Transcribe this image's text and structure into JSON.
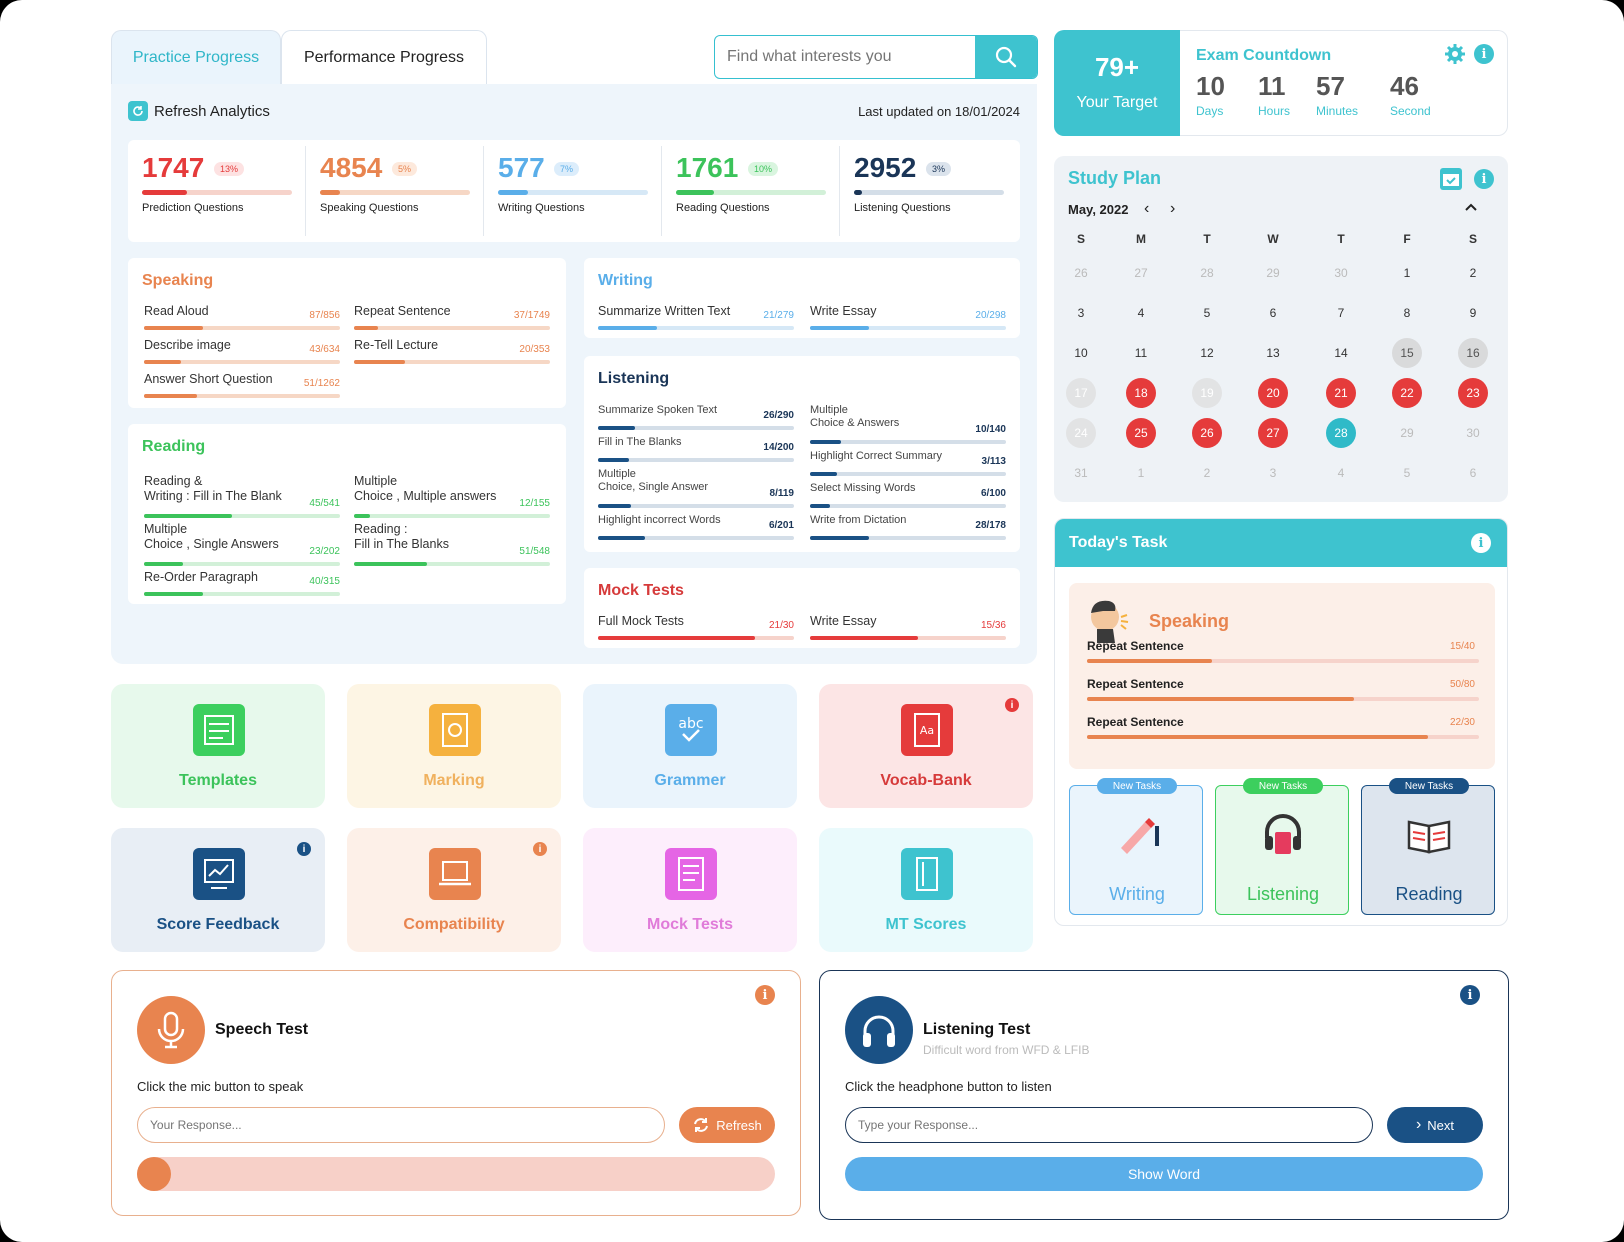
{
  "tabs": {
    "practice": "Practice Progress",
    "performance": "Performance Progress"
  },
  "search": {
    "placeholder": "Find what interests you"
  },
  "analytics": {
    "refresh": "Refresh Analytics",
    "last_updated": "Last updated on 18/01/2024"
  },
  "stats": [
    {
      "value": "1747",
      "pct": "13%",
      "label": "Prediction Questions",
      "fill": 0.3,
      "color": "#e53b3b",
      "track": "#f6d3cb",
      "pctbg": "#fde2e2"
    },
    {
      "value": "4854",
      "pct": "5%",
      "label": "Speaking Questions",
      "fill": 0.13,
      "color": "#e8844f",
      "track": "#f6d7c5",
      "pctbg": "#fde9dc"
    },
    {
      "value": "577",
      "pct": "7%",
      "label": "Writing Questions",
      "fill": 0.2,
      "color": "#5aaee9",
      "track": "#d6e8f6",
      "pctbg": "#dcedfb"
    },
    {
      "value": "1761",
      "pct": "10%",
      "label": "Reading Questions",
      "fill": 0.25,
      "color": "#3cc35b",
      "track": "#d2f0d8",
      "pctbg": "#d9f5df"
    },
    {
      "value": "2952",
      "pct": "3%",
      "label": "Listening Questions",
      "fill": 0.05,
      "color": "#1a3557",
      "track": "#d4dee8",
      "pctbg": "#dbe3ec"
    }
  ],
  "speaking": {
    "title": "Speaking",
    "items": [
      {
        "name": "Read Aloud",
        "val": "87/856",
        "fill": 0.3
      },
      {
        "name": "Repeat Sentence",
        "val": "37/1749",
        "fill": 0.12
      },
      {
        "name": "Describe image",
        "val": "43/634",
        "fill": 0.19
      },
      {
        "name": "Re-Tell Lecture",
        "val": "20/353",
        "fill": 0.26
      },
      {
        "name": "Answer Short Question",
        "val": "51/1262",
        "fill": 0.27
      }
    ]
  },
  "reading": {
    "title": "Reading",
    "items": [
      {
        "name1": "Reading &",
        "name2": "Writing : Fill in The Blank",
        "val": "45/541",
        "fill": 0.45
      },
      {
        "name1": "Multiple",
        "name2": "Choice , Multiple answers",
        "val": "12/155",
        "fill": 0.08
      },
      {
        "name1": "Multiple",
        "name2": "Choice , Single Answers",
        "val": "23/202",
        "fill": 0.2
      },
      {
        "name1": "Reading :",
        "name2": "Fill in The Blanks",
        "val": "51/548",
        "fill": 0.37
      },
      {
        "name1": "",
        "name2": "Re-Order Paragraph",
        "val": "40/315",
        "fill": 0.3
      }
    ]
  },
  "writing": {
    "title": "Writing",
    "items": [
      {
        "name": "Summarize Written Text",
        "val": "21/279",
        "fill": 0.3
      },
      {
        "name": "Write Essay",
        "val": "20/298",
        "fill": 0.3
      }
    ]
  },
  "listening": {
    "title": "Listening",
    "items": [
      {
        "name1": "",
        "name2": "Summarize Spoken Text",
        "val": "26/290",
        "fill": 0.19
      },
      {
        "name1": "Multiple",
        "name2": "Choice & Answers",
        "val": "10/140",
        "fill": 0.16
      },
      {
        "name1": "",
        "name2": "Fill in The Blanks",
        "val": "14/200",
        "fill": 0.16
      },
      {
        "name1": "",
        "name2": "Highlight Correct Summary",
        "val": "3/113",
        "fill": 0.14
      },
      {
        "name1": "Multiple",
        "name2": "Choice, Single Answer",
        "val": "8/119",
        "fill": 0.17
      },
      {
        "name1": "",
        "name2": "Select Missing Words",
        "val": "6/100",
        "fill": 0.1
      },
      {
        "name1": "",
        "name2": "Highlight incorrect Words",
        "val": "6/201",
        "fill": 0.24
      },
      {
        "name1": "",
        "name2": "Write from Dictation",
        "val": "28/178",
        "fill": 0.3
      }
    ]
  },
  "mock": {
    "title": "Mock Tests",
    "items": [
      {
        "name": "Full Mock Tests",
        "val": "21/30",
        "fill": 0.8
      },
      {
        "name": "Write Essay",
        "val": "15/36",
        "fill": 0.55
      }
    ]
  },
  "tiles": [
    {
      "label": "Templates",
      "icon": "templates-icon",
      "bg": "#e7f9ec",
      "ic": "#3ccf5e",
      "tc": "#3cc35b"
    },
    {
      "label": "Marking",
      "icon": "marking-icon",
      "bg": "#fdf5e4",
      "ic": "#f5b13e",
      "tc": "#f0b15e"
    },
    {
      "label": "Grammer",
      "icon": "grammar-icon",
      "bg": "#eaf4fc",
      "ic": "#5aaee9",
      "tc": "#5aaee9"
    },
    {
      "label": "Vocab-Bank",
      "icon": "vocab-icon",
      "bg": "#fce5e5",
      "ic": "#e53b3b",
      "tc": "#d63a3a",
      "info": "#e53b3b"
    },
    {
      "label": "Score Feedback",
      "icon": "score-feedback-icon",
      "bg": "#e8eef5",
      "ic": "#1a5185",
      "tc": "#1a5185",
      "info": "#1a5185"
    },
    {
      "label": "Compatibility",
      "icon": "compatibility-icon",
      "bg": "#fdf0e8",
      "ic": "#e8844f",
      "tc": "#e8844f",
      "info": "#e8844f"
    },
    {
      "label": "Mock Tests",
      "icon": "mock-tests-icon",
      "bg": "#fdeefc",
      "ic": "#e565e5",
      "tc": "#e07bd9"
    },
    {
      "label": "MT Scores",
      "icon": "mt-scores-icon",
      "bg": "#eafafc",
      "ic": "#3ec3cf",
      "tc": "#3ec3cf"
    }
  ],
  "target": {
    "value": "79+",
    "label": "Your Target"
  },
  "countdown": {
    "title": "Exam Countdown",
    "units": [
      {
        "n": "10",
        "u": "Days"
      },
      {
        "n": "11",
        "u": "Hours"
      },
      {
        "n": "57",
        "u": "Minutes"
      },
      {
        "n": "46",
        "u": "Second"
      }
    ]
  },
  "study": {
    "title": "Study Plan",
    "month": "May, 2022",
    "weekdays": [
      "S",
      "M",
      "T",
      "W",
      "T",
      "F",
      "S"
    ],
    "days": [
      [
        "26",
        "mute"
      ],
      [
        "27",
        "mute"
      ],
      [
        "28",
        "mute"
      ],
      [
        "29",
        "mute"
      ],
      [
        "30",
        "mute"
      ],
      [
        "1",
        ""
      ],
      [
        "2",
        ""
      ],
      [
        "3",
        ""
      ],
      [
        "4",
        ""
      ],
      [
        "5",
        ""
      ],
      [
        "6",
        ""
      ],
      [
        "7",
        ""
      ],
      [
        "8",
        ""
      ],
      [
        "9",
        ""
      ],
      [
        "10",
        ""
      ],
      [
        "11",
        ""
      ],
      [
        "12",
        ""
      ],
      [
        "13",
        ""
      ],
      [
        "14",
        ""
      ],
      [
        "15",
        "grey"
      ],
      [
        "16",
        "grey"
      ],
      [
        "17",
        "lgrey"
      ],
      [
        "18",
        "red"
      ],
      [
        "19",
        "lgrey"
      ],
      [
        "20",
        "red"
      ],
      [
        "21",
        "red"
      ],
      [
        "22",
        "red"
      ],
      [
        "23",
        "red"
      ],
      [
        "24",
        "lgrey"
      ],
      [
        "25",
        "red"
      ],
      [
        "26",
        "red"
      ],
      [
        "27",
        "red"
      ],
      [
        "28",
        "teal"
      ],
      [
        "29",
        "mute"
      ],
      [
        "30",
        "mute"
      ],
      [
        "31",
        "mute"
      ],
      [
        "1",
        "mute"
      ],
      [
        "2",
        "mute"
      ],
      [
        "3",
        "mute"
      ],
      [
        "4",
        "mute"
      ],
      [
        "5",
        "mute"
      ],
      [
        "6",
        "mute"
      ]
    ]
  },
  "today": {
    "title": "Today's Task",
    "subject": "Speaking",
    "tasks": [
      {
        "name": "Repeat Sentence",
        "val": "15/40",
        "fill": 0.32
      },
      {
        "name": "Repeat Sentence",
        "val": "50/80",
        "fill": 0.68
      },
      {
        "name": "Repeat Sentence",
        "val": "22/30",
        "fill": 0.87
      }
    ]
  },
  "newtasks": [
    {
      "badge": "New Tasks",
      "label": "Writing",
      "bg": "#eaf4fc",
      "bd": "#5aaee9",
      "bb": "#5aaee9",
      "tc": "#5aaee9"
    },
    {
      "badge": "New Tasks",
      "label": "Listening",
      "bg": "#e7f9ec",
      "bd": "#3ccf5e",
      "bb": "#3ccf5e",
      "tc": "#3cc35b"
    },
    {
      "badge": "New Tasks",
      "label": "Reading",
      "bg": "#dde5ee",
      "bd": "#1a5185",
      "bb": "#1a5185",
      "tc": "#1a5185"
    }
  ],
  "speech": {
    "title": "Speech Test",
    "instruction": "Click the mic button to speak",
    "placeholder": "Your Response...",
    "refresh": "Refresh",
    "progress": 0.04
  },
  "listen": {
    "title": "Listening Test",
    "subtitle": "Difficult word from WFD & LFIB",
    "instruction": "Click the headphone button to listen",
    "placeholder": "Type your Response...",
    "next": "Next",
    "show": "Show Word"
  },
  "colors": {
    "teal": "#3ec3cf",
    "red": "#e53b3b",
    "orange": "#e8844f",
    "blue": "#5aaee9",
    "green": "#3cc35b",
    "navy": "#1a3557"
  }
}
